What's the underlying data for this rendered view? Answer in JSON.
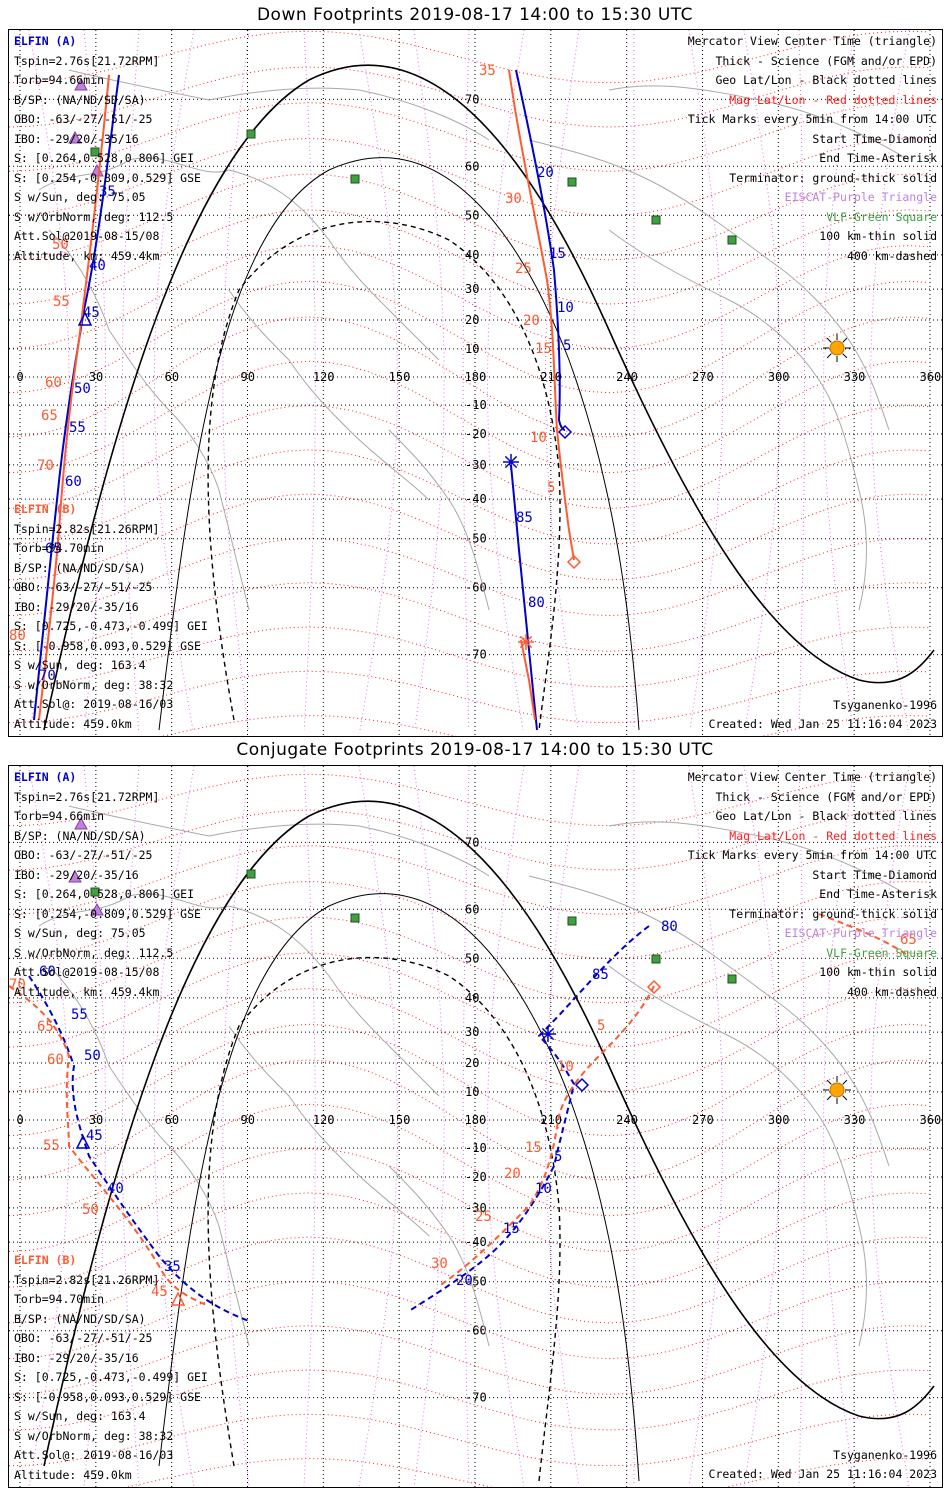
{
  "panels": [
    {
      "id": "down",
      "title": "Down Footprints 2019-08-17 14:00 to 15:30 UTC",
      "elfin_a": {
        "label": "ELFIN (A)",
        "lines": [
          "Tspin=2.76s[21.72RPM]",
          "Torb=94.66min",
          "B/SP: (NA/ND/SD/SA)",
          "OBO: -63/-27/-51/-25",
          "IBO: -29/20/-35/16",
          "S: [0.264,0.528,0.806] GEI",
          "S: [0.254,-0.809,0.529] GSE",
          "S w/Sun, deg: 75.05",
          "S w/OrbNorm, deg: 112.5",
          "Att.Sol@2019-08-15/08",
          "Altitude, km: 459.4km"
        ]
      },
      "elfin_b": {
        "label": "ELFIN (B)",
        "lines": [
          "Tspin=2.82s[21.26RPM]",
          "Torb=94.70min",
          "B/SP: (NA/ND/SD/SA)",
          "OBO: -63/-27/-51/-25",
          "IBO: -29/20/-35/16",
          "S: [0.725,-0.473,-0.499] GEI",
          "S: [-0.958,0.093,0.529] GSE",
          "S w/Sun, deg: 163.4",
          "S w/OrbNorm, deg: 38:32",
          "Att.Sol@: 2019-08-16/03",
          "Altitude: 459.0km"
        ]
      },
      "footer_right": [
        "Tsyganenko-1996",
        "Created: Wed Jan 25 11:16:04 2023"
      ]
    },
    {
      "id": "conjugate",
      "title": "Conjugate Footprints 2019-08-17 14:00 to 15:30 UTC",
      "elfin_a": {
        "label": "ELFIN (A)",
        "lines": [
          "Tspin=2.76s[21.72RPM]",
          "Torb=94.66min",
          "B/SP: (NA/ND/SD/SA)",
          "OBO: -63/-27/-51/-25",
          "IBO: -29/20/-35/16",
          "S: [0.264,0.528,0.806] GEI",
          "S: [0.254,-0.809,0.529] GSE",
          "S w/Sun, deg: 75.05",
          "S w/OrbNorm, deg: 112.5",
          "Att.Sol@2019-08-15/08",
          "Altitude, km: 459.4km"
        ]
      },
      "elfin_b": {
        "label": "ELFIN (B)",
        "lines": [
          "Tspin=2.82s[21.26RPM]",
          "Torb=94.70min",
          "B/SP: (NA/ND/SD/SA)",
          "OBO: -63/-27/-51/-25",
          "IBO: -29/20/-35/16",
          "S: [0.725,-0.473,-0.499] GEI",
          "S: [-0.958,0.093,0.529] GSE",
          "S w/Sun, deg: 163.4",
          "S w/OrbNorm, deg: 38:32",
          "Att.Sol@: 2019-08-16/03",
          "Altitude: 459.0km"
        ]
      },
      "footer_right": [
        "Tsyganenko-1996",
        "Created: Wed Jan 25 11:16:04 2023"
      ]
    }
  ],
  "legend": [
    {
      "text": "Mercator View Center Time (triangle)",
      "color": "#000000"
    },
    {
      "text": "Thick - Science (FGM and/or EPD)",
      "color": "#000000"
    },
    {
      "text": "Geo Lat/Lon - Black dotted lines",
      "color": "#000000"
    },
    {
      "text": "Mag Lat/Lon - Red dotted lines",
      "color": "#ff2020"
    },
    {
      "text": "Tick Marks every 5min from 14:00 UTC",
      "color": "#000000"
    },
    {
      "text": "Start Time-Diamond",
      "color": "#000000"
    },
    {
      "text": "End Time-Asterisk",
      "color": "#000000"
    },
    {
      "text": "Terminator: ground-thick solid",
      "color": "#000000"
    },
    {
      "text": "EISCAT-Purple Triangle",
      "color": "#c080e0"
    },
    {
      "text": "VLF-Green Square",
      "color": "#40a040"
    },
    {
      "text": "100 km-thin solid",
      "color": "#000000"
    },
    {
      "text": "400 km-dashed",
      "color": "#000000"
    }
  ],
  "axes": {
    "lon_ticks": [
      "0",
      "30",
      "60",
      "90",
      "120",
      "150",
      "180",
      "210",
      "240",
      "270",
      "300",
      "330",
      "360"
    ],
    "lat_ticks": [
      "70",
      "60",
      "50",
      "40",
      "30",
      "20",
      "10",
      "-10",
      "-20",
      "-30",
      "-40",
      "-50",
      "-60",
      "-70"
    ]
  },
  "colors": {
    "elfin_a": "#0000cc",
    "elfin_b": "#ff5a30",
    "mag_grid": "#ff2020",
    "geo_grid": "#000000",
    "eiscat": "#c080e0",
    "vlf": "#40a040",
    "sun": "#ffa500"
  },
  "down_a_ticks": [
    "35",
    "40",
    "45",
    "50",
    "55",
    "60",
    "65",
    "70",
    "20",
    "15",
    "10",
    "5",
    "85",
    "80"
  ],
  "down_b_ticks": [
    "35",
    "30",
    "25",
    "20",
    "15",
    "10",
    "5",
    "50",
    "55",
    "60",
    "65",
    "70",
    "80"
  ],
  "conj_a_ticks": [
    "80",
    "85",
    "60",
    "55",
    "50",
    "45",
    "40",
    "35",
    "5",
    "10",
    "15",
    "20"
  ],
  "conj_b_ticks": [
    "70",
    "65",
    "60",
    "55",
    "50",
    "45",
    "5",
    "10",
    "15",
    "20",
    "25",
    "30",
    "65"
  ]
}
